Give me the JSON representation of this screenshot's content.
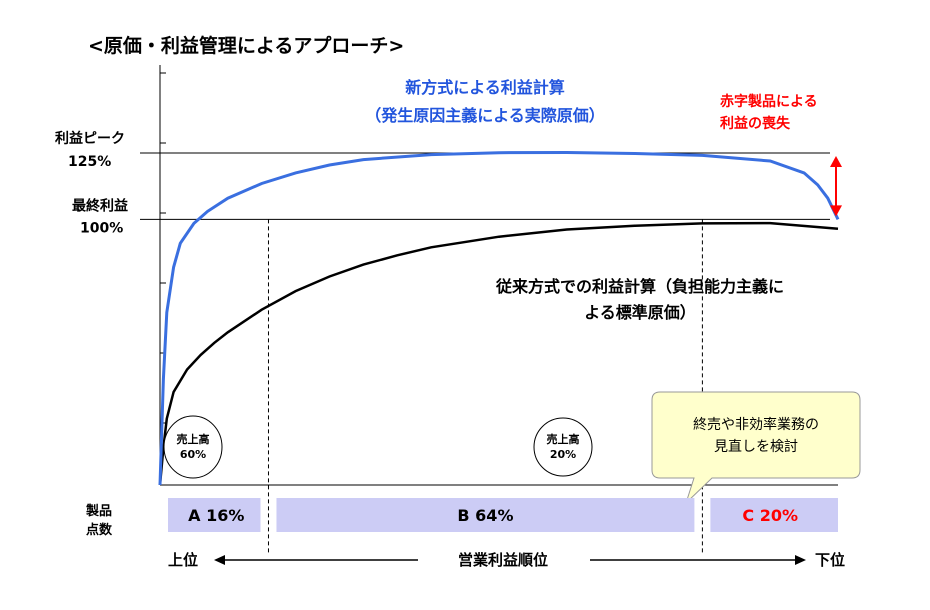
{
  "chart_data": {
    "type": "line",
    "title": "<原価・利益管理によるアプローチ>",
    "x_axis": {
      "left_label": "上位",
      "center_label": "営業利益順位",
      "right_label": "下位"
    },
    "y_ticks": [
      {
        "label_line1": "利益ピーク",
        "label_line2": "125%",
        "value": 125
      },
      {
        "label_line1": "最終利益",
        "label_line2": "100%",
        "value": 100
      }
    ],
    "ylim": [
      0,
      125
    ],
    "xlim": [
      0,
      100
    ],
    "series": [
      {
        "name": "新方式による利益計算（発生原因主義による実際原価）",
        "color": "#3a6fe0",
        "x": [
          0,
          0.5,
          1,
          2,
          3,
          5,
          7,
          10,
          15,
          20,
          25,
          30,
          40,
          50,
          60,
          70,
          80,
          90,
          95,
          97,
          98.5,
          100
        ],
        "y": [
          0,
          40,
          65,
          82,
          91,
          98.5,
          103,
          108,
          113.5,
          117.5,
          120.5,
          122.5,
          124.4,
          125.1,
          125.2,
          124.8,
          124.1,
          122,
          117.5,
          113,
          108,
          100
        ]
      },
      {
        "name": "従来方式での利益計算（負担能力主義による標準原価）",
        "color": "#000000",
        "x": [
          0,
          0.5,
          1,
          2,
          4,
          6,
          8,
          10,
          15,
          20,
          25,
          30,
          35,
          40,
          50,
          60,
          70,
          80,
          90,
          100
        ],
        "y": [
          0,
          14,
          25,
          35,
          43.5,
          49,
          53.5,
          57.5,
          66,
          73,
          78.5,
          83,
          86.5,
          89.5,
          93.5,
          96.2,
          97.6,
          98.5,
          98.6,
          96.5
        ]
      }
    ],
    "legend_labels": {
      "blue_line1": "新方式による利益計算",
      "blue_line2": "（発生原因主義による実際原価）",
      "black_line1": "従来方式での利益計算（負担能力主義に",
      "black_line2": "よる標準原価）"
    },
    "annotations": {
      "red_line1": "赤字製品による",
      "red_line2": "利益の喪失",
      "red_color": "#ff0000",
      "circle_a_line1": "売上高",
      "circle_a_line2": "60%",
      "circle_b_line1": "売上高",
      "circle_b_line2": "20%",
      "bubble_line1": "終売や非効率業務の",
      "bubble_line2": "見直しを検討"
    },
    "segments_label_line1": "製品",
    "segments_label_line2": "点数",
    "segments": [
      {
        "name": "A",
        "label": "A 16%",
        "percent": 16,
        "color": "#000000"
      },
      {
        "name": "B",
        "label": "B 64%",
        "percent": 64,
        "color": "#000000"
      },
      {
        "name": "C",
        "label": "C 20%",
        "percent": 20,
        "color": "#ff0000"
      }
    ],
    "segment_fill": "#ccccf5",
    "bubble_fill": "#ffffcc"
  }
}
